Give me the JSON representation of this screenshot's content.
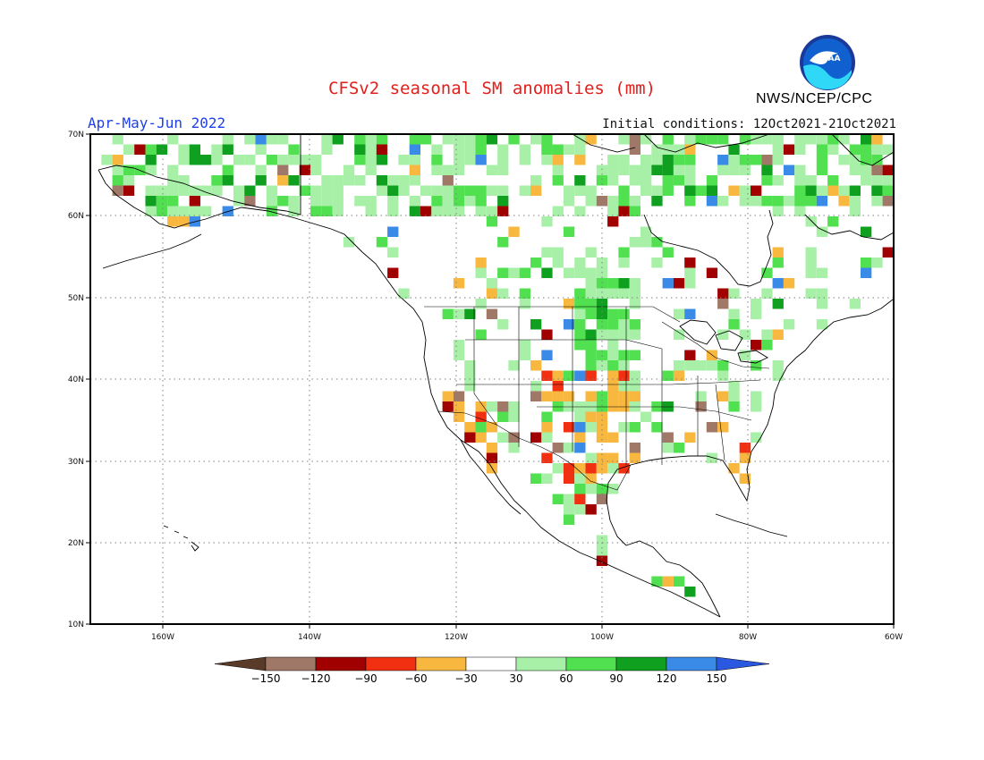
{
  "header": {
    "title": "CFSv2 seasonal SM anomalies (mm)",
    "season": "Apr-May-Jun 2022",
    "initial_conditions": "Initial conditions: 12Oct2021-21Oct2021",
    "organization": "NWS/NCEP/CPC",
    "logo_text": "NOAA"
  },
  "axes": {
    "lat_labels": [
      "70N",
      "60N",
      "50N",
      "40N",
      "30N",
      "20N",
      "10N"
    ],
    "lon_labels": [
      "160W",
      "140W",
      "120W",
      "100W",
      "80W",
      "60W"
    ]
  },
  "colorbar": {
    "labels": [
      "-150",
      "-120",
      "-90",
      "-60",
      "-30",
      "30",
      "60",
      "90",
      "120",
      "150"
    ],
    "colors": [
      "#5a3a28",
      "#a07868",
      "#a00000",
      "#f03010",
      "#f8b840",
      "#ffffff",
      "#a8f0a8",
      "#50e050",
      "#10a020",
      "#3a8ae8",
      "#2a58e0"
    ]
  },
  "map_regions": {
    "green_dense": "northern plains, Canada north",
    "orange_dense": "southern plains, Mexico, Florida"
  }
}
